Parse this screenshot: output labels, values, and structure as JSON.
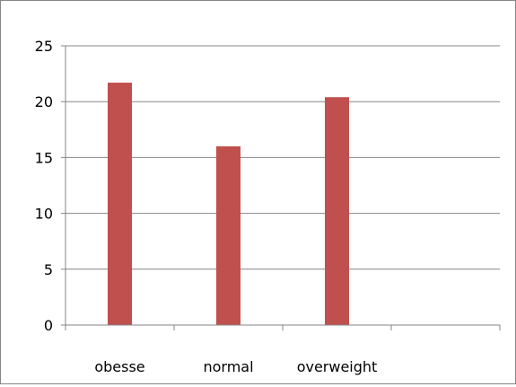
{
  "chart_data": {
    "type": "bar",
    "title": "",
    "xlabel": "",
    "ylabel": "",
    "categories": [
      "obesse",
      "normal",
      "overweight",
      ""
    ],
    "values": [
      21.7,
      16.0,
      20.4,
      null
    ],
    "ylim": [
      0,
      25
    ],
    "yticks": [
      "0",
      "5",
      "10",
      "15",
      "20",
      "25"
    ],
    "grid": true,
    "legend": "none",
    "bar_color": "#c0504d",
    "grid_color": "#868686"
  }
}
